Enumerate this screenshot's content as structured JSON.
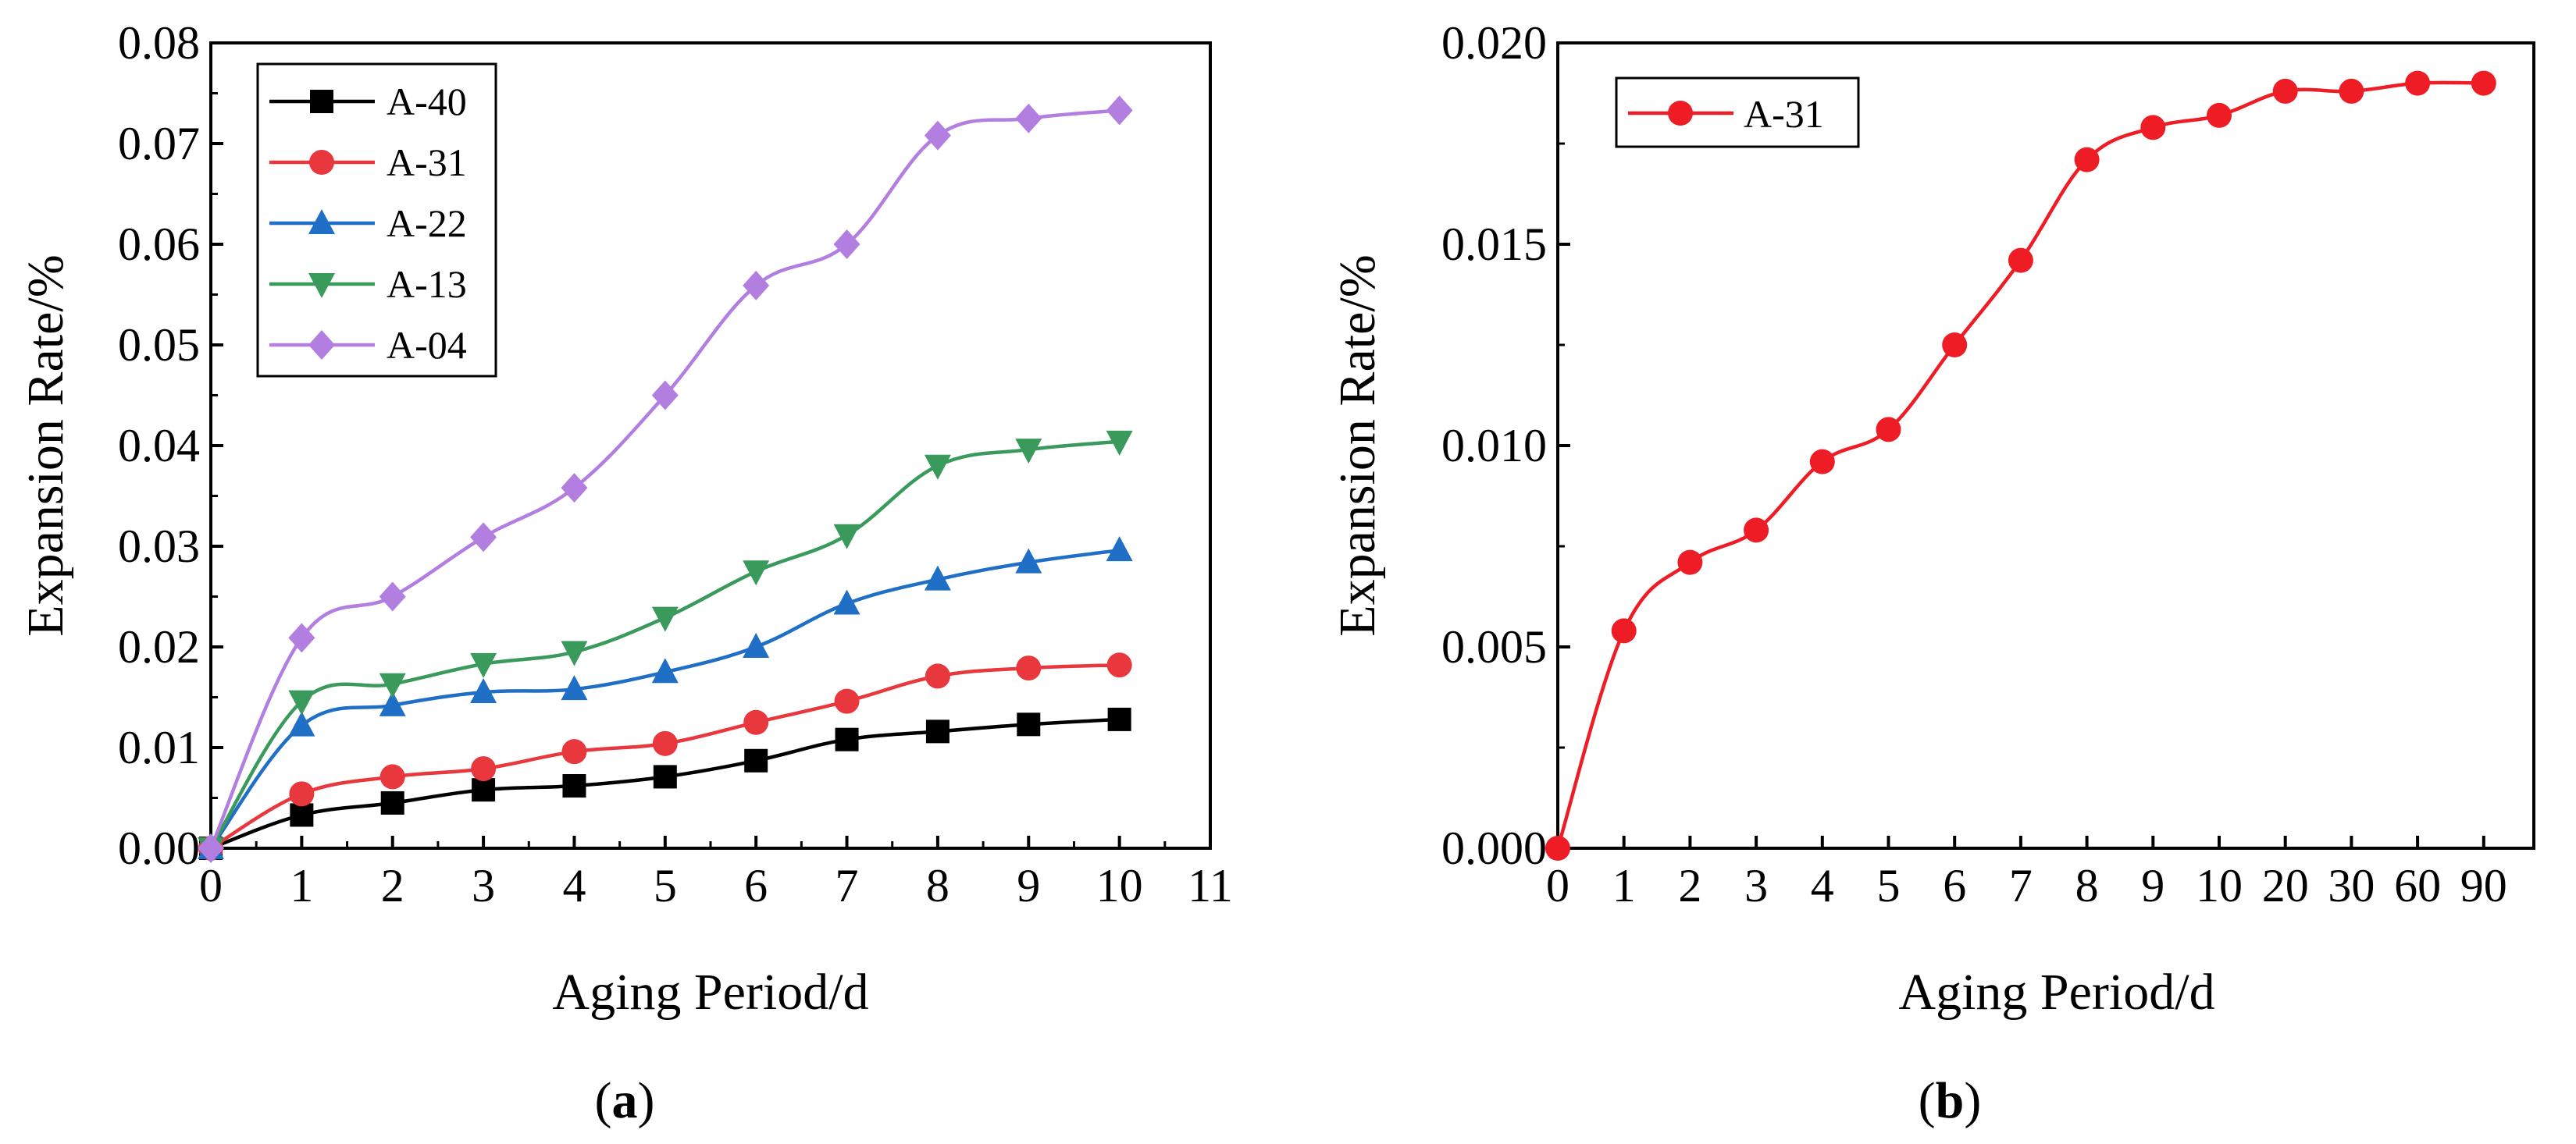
{
  "chart_data": [
    {
      "type": "line",
      "panel_label": "a",
      "title": "",
      "xlabel": "Aging Period/d",
      "ylabel": "Expansion Rate/%",
      "xlim": [
        0,
        11
      ],
      "ylim": [
        0,
        0.08
      ],
      "x_ticks": [
        "0",
        "1",
        "2",
        "3",
        "4",
        "5",
        "6",
        "7",
        "8",
        "9",
        "10",
        "11"
      ],
      "y_ticks": [
        "0.00",
        "0.01",
        "0.02",
        "0.03",
        "0.04",
        "0.05",
        "0.06",
        "0.07",
        "0.08"
      ],
      "legend_position": "top-left",
      "x": [
        0,
        1,
        2,
        3,
        4,
        5,
        6,
        7,
        8,
        9,
        10
      ],
      "series": [
        {
          "name": "A-40",
          "color": "#000000",
          "marker": "square",
          "values": [
            0,
            0.0033,
            0.0045,
            0.0058,
            0.0062,
            0.0071,
            0.0087,
            0.0108,
            0.0116,
            0.0123,
            0.0128
          ]
        },
        {
          "name": "A-31",
          "color": "#e8383d",
          "marker": "circle",
          "values": [
            0,
            0.0054,
            0.0071,
            0.0079,
            0.0096,
            0.0104,
            0.0125,
            0.0146,
            0.0171,
            0.0179,
            0.0182
          ]
        },
        {
          "name": "A-22",
          "color": "#1f6fc6",
          "marker": "triangle-up",
          "values": [
            0,
            0.0122,
            0.0142,
            0.0155,
            0.0158,
            0.0175,
            0.02,
            0.0243,
            0.0267,
            0.0284,
            0.0296
          ]
        },
        {
          "name": "A-13",
          "color": "#3a9a5c",
          "marker": "triangle-down",
          "values": [
            0,
            0.0146,
            0.0163,
            0.0183,
            0.0195,
            0.0229,
            0.0275,
            0.0311,
            0.038,
            0.0396,
            0.0404
          ]
        },
        {
          "name": "A-04",
          "color": "#b27fe0",
          "marker": "diamond",
          "values": [
            0,
            0.0209,
            0.025,
            0.0309,
            0.0358,
            0.045,
            0.0559,
            0.06,
            0.0708,
            0.0725,
            0.0733
          ]
        }
      ]
    },
    {
      "type": "line",
      "panel_label": "b",
      "title": "",
      "xlabel": "Aging Period/d",
      "ylabel": "Expansion Rate/%",
      "ylim": [
        0,
        0.02
      ],
      "x_categories": [
        "0",
        "1",
        "2",
        "3",
        "4",
        "5",
        "6",
        "7",
        "8",
        "9",
        "10",
        "20",
        "30",
        "60",
        "90"
      ],
      "y_ticks": [
        "0.000",
        "0.005",
        "0.010",
        "0.015",
        "0.020"
      ],
      "legend_position": "top-left",
      "series": [
        {
          "name": "A-31",
          "color": "#ee1c24",
          "marker": "circle",
          "values": [
            0,
            0.0054,
            0.0071,
            0.0079,
            0.0096,
            0.0104,
            0.0125,
            0.0146,
            0.0171,
            0.0179,
            0.0182,
            0.0188,
            0.0188,
            0.019,
            0.019
          ]
        }
      ]
    }
  ]
}
